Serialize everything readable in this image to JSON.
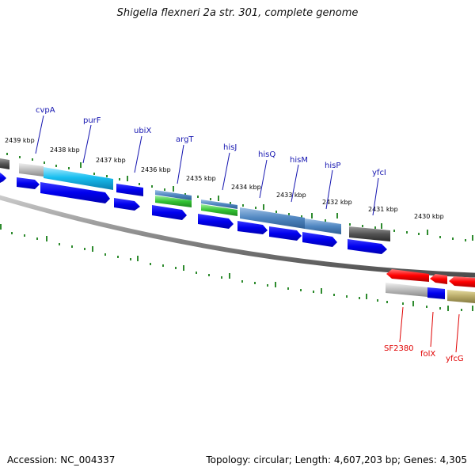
{
  "title": "Shigella flexneri 2a str. 301, complete genome",
  "footer": {
    "accession": "Accession: NC_004337",
    "summary": "Topology: circular; Length: 4,607,203 bp; Genes: 4,305"
  },
  "scale_ticks": [
    "2439 kbp",
    "2438 kbp",
    "2437 kbp",
    "2436 kbp",
    "2435 kbp",
    "2434 kbp",
    "2433 kbp",
    "2432 kbp",
    "2431 kbp",
    "2430 kbp"
  ],
  "forward_gene_labels": [
    "cvpA",
    "purF",
    "ubiX",
    "argT",
    "hisJ",
    "hisQ",
    "hisM",
    "hisP",
    "yfcI"
  ],
  "reverse_gene_labels": [
    "SF2380",
    "folX",
    "yfcG"
  ],
  "colors": {
    "forward_label": "#1515b0",
    "reverse_label": "#e00000",
    "cds_blue": "#0a0af0",
    "tick_green": "#2e8b2e",
    "backbone": "#8a8a8a"
  }
}
